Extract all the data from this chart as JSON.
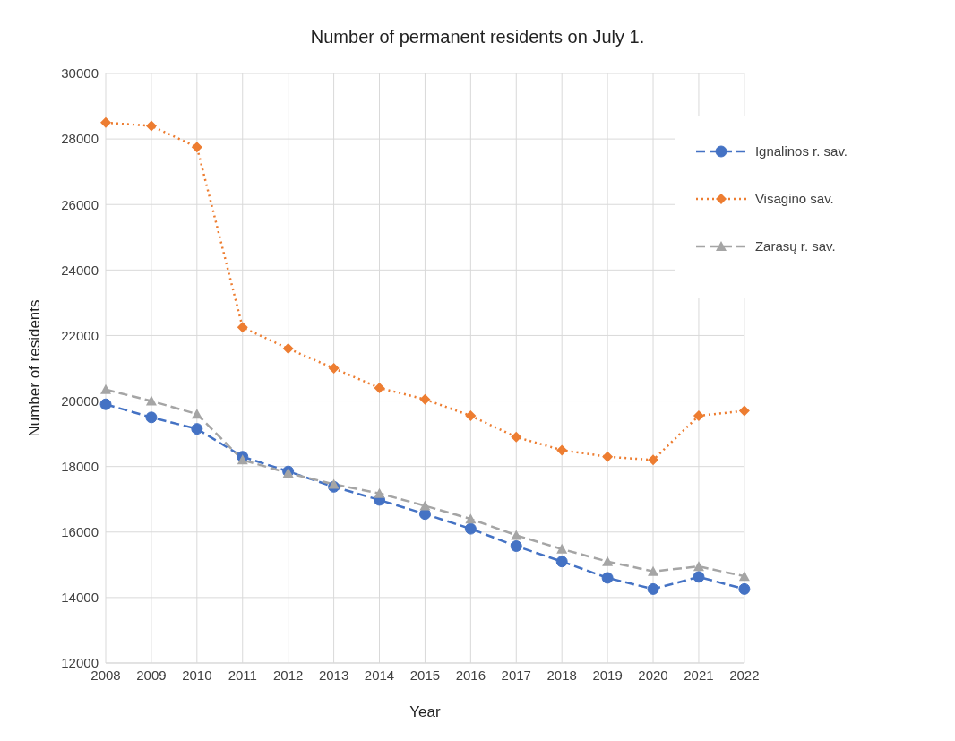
{
  "chart_data": {
    "type": "line",
    "title": "Number of permanent residents on July 1.",
    "xlabel": "Year",
    "ylabel": "Number of residents",
    "categories": [
      "2008",
      "2009",
      "2010",
      "2011",
      "2012",
      "2013",
      "2014",
      "2015",
      "2016",
      "2017",
      "2018",
      "2019",
      "2020",
      "2021",
      "2022"
    ],
    "series": [
      {
        "name": "Ignalinos r. sav.",
        "color": "#4472c4",
        "marker": "circle",
        "line_style": "dashed",
        "values": [
          19900,
          19500,
          19150,
          18300,
          17850,
          17380,
          16980,
          16550,
          16100,
          15570,
          15100,
          14600,
          14260,
          14630,
          14260
        ]
      },
      {
        "name": "Visagino sav.",
        "color": "#ed7d31",
        "marker": "diamond",
        "line_style": "dotted",
        "values": [
          28500,
          28400,
          27750,
          22250,
          21600,
          21000,
          20400,
          20050,
          19550,
          18900,
          18500,
          18300,
          18200,
          19550,
          19700
        ]
      },
      {
        "name": "Zarasų r. sav.",
        "color": "#a5a5a5",
        "marker": "triangle",
        "line_style": "dashed",
        "values": [
          20350,
          20000,
          19600,
          18200,
          17800,
          17460,
          17180,
          16800,
          16400,
          15900,
          15480,
          15100,
          14800,
          14950,
          14650
        ]
      }
    ],
    "ylim": [
      12000,
      30000
    ],
    "yticks": [
      12000,
      14000,
      16000,
      18000,
      20000,
      22000,
      24000,
      26000,
      28000,
      30000
    ],
    "grid": true,
    "legend": "top right"
  }
}
